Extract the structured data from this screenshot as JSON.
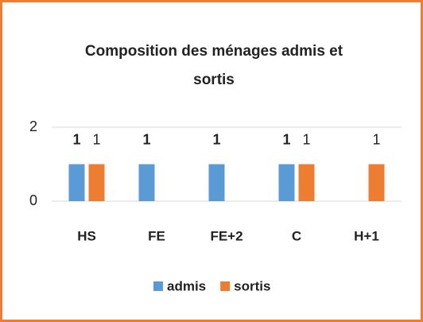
{
  "chart_data": {
    "type": "bar",
    "title": "Composition des ménages admis et sortis",
    "categories": [
      "HS",
      "FE",
      "FE+2",
      "C",
      "H+1"
    ],
    "series": [
      {
        "name": "admis",
        "color": "#5b9bd5",
        "values": [
          1,
          1,
          1,
          1,
          null
        ]
      },
      {
        "name": "sortis",
        "color": "#ed7d31",
        "values": [
          1,
          null,
          null,
          1,
          1
        ]
      }
    ],
    "ylim": [
      0,
      2
    ],
    "yticks": [
      0,
      2
    ],
    "grid": true,
    "legend": "bottom",
    "border_color": "#ed7d31"
  }
}
